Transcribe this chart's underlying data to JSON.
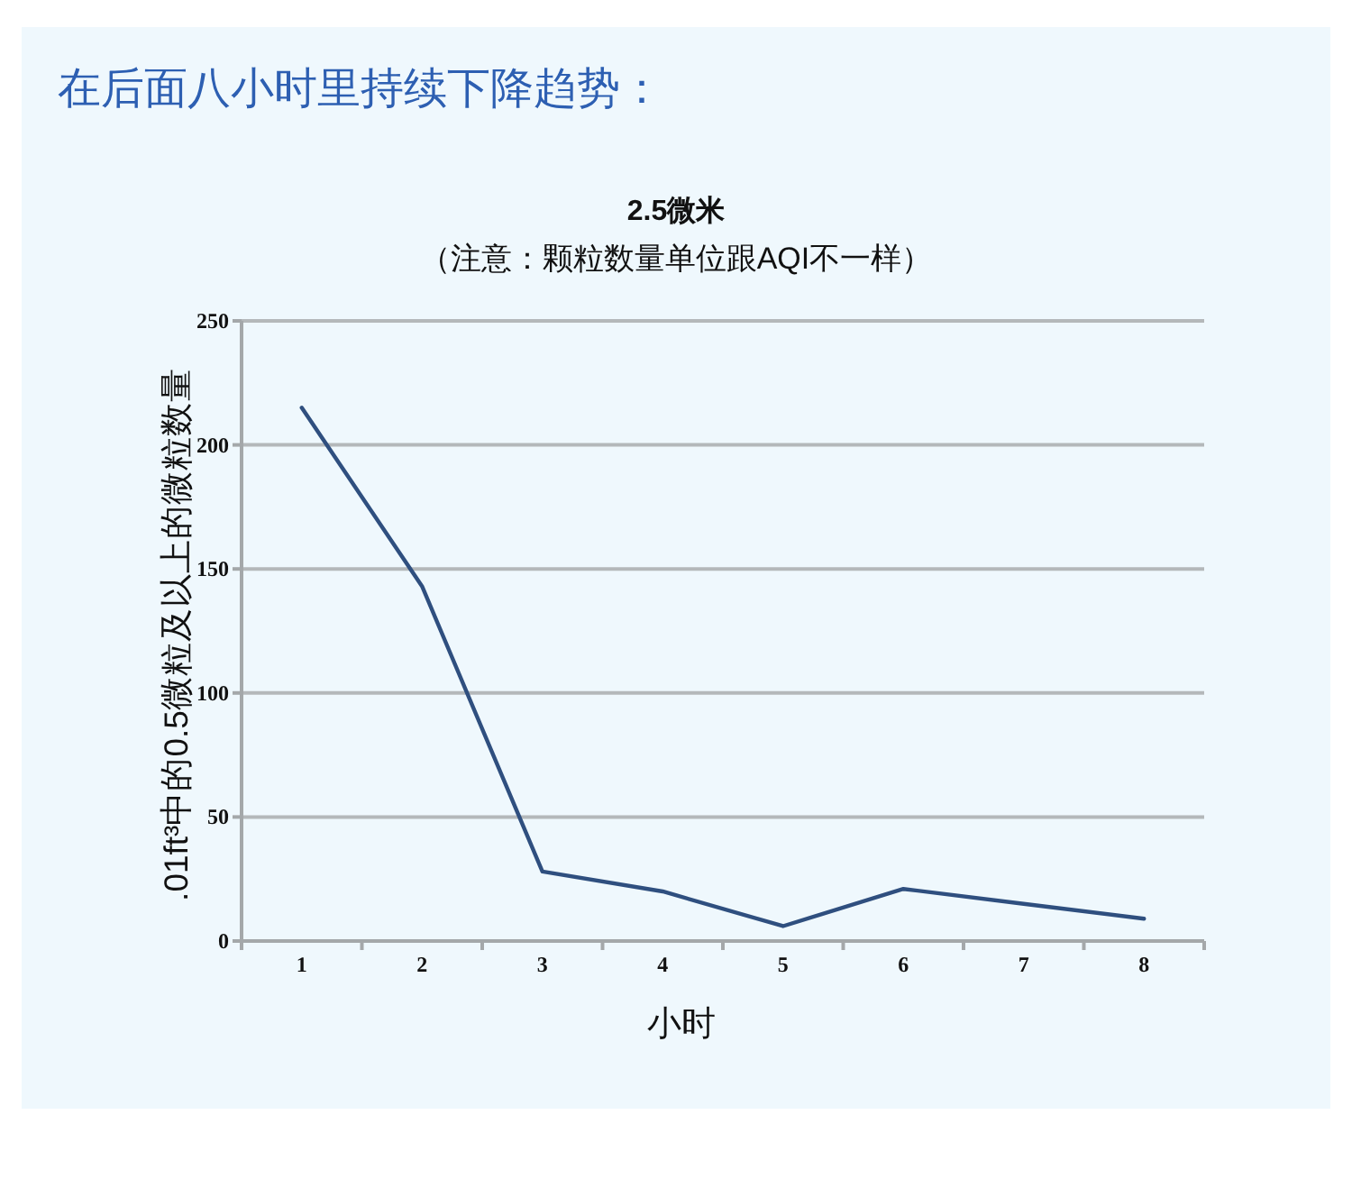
{
  "chart_data": {
    "type": "line",
    "title": "2.5微米",
    "subtitle": "（注意：颗粒数量单位跟AQI不一样）",
    "xlabel": "小时",
    "ylabel": ".01ft³中的0.5微粒及以上的微粒数量",
    "annotations": [
      "在后面八小时里持续下降趋势："
    ],
    "categories": [
      "1",
      "2",
      "3",
      "4",
      "5",
      "6",
      "7",
      "8"
    ],
    "series": [
      {
        "color": "#2f4f7f",
        "values": [
          215,
          143,
          28,
          20,
          6,
          21,
          15,
          9
        ]
      }
    ],
    "ylim": [
      0,
      250
    ],
    "yticks": [
      0,
      50,
      100,
      150,
      200,
      250
    ],
    "grid": "y",
    "line_style": "solid"
  }
}
